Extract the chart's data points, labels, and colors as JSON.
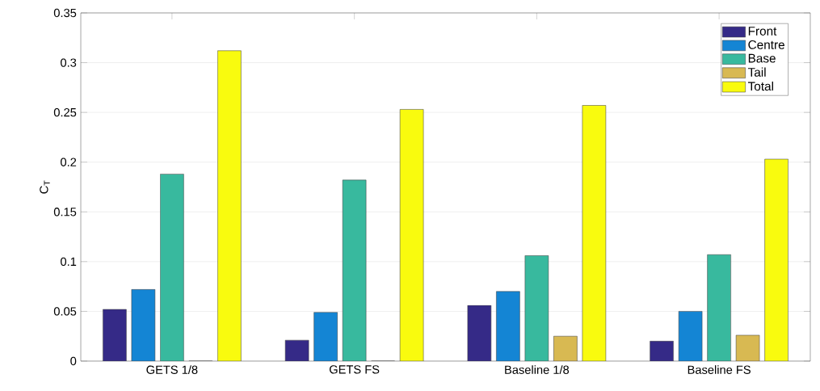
{
  "chart_data": {
    "type": "bar",
    "ylabel": "C$_{T}$",
    "categories": [
      "GETS 1/8",
      "GETS FS",
      "Baseline 1/8",
      "Baseline FS"
    ],
    "series": [
      {
        "name": "Front",
        "color": "#352a87",
        "values": [
          0.052,
          0.021,
          0.056,
          0.02
        ]
      },
      {
        "name": "Centre",
        "color": "#1485d4",
        "values": [
          0.072,
          0.049,
          0.07,
          0.05
        ]
      },
      {
        "name": "Base",
        "color": "#38b99e",
        "values": [
          0.188,
          0.182,
          0.106,
          0.107
        ]
      },
      {
        "name": "Tail",
        "color": "#d8b952",
        "values": [
          0,
          0,
          0.025,
          0.026
        ]
      },
      {
        "name": "Total",
        "color": "#f9fb0e",
        "values": [
          0.312,
          0.253,
          0.257,
          0.203
        ]
      }
    ],
    "ylim": [
      0,
      0.35
    ],
    "yticks": [
      0,
      0.05,
      0.1,
      0.15,
      0.2,
      0.25,
      0.3,
      0.35
    ],
    "grid": "y",
    "legend": "top right"
  }
}
